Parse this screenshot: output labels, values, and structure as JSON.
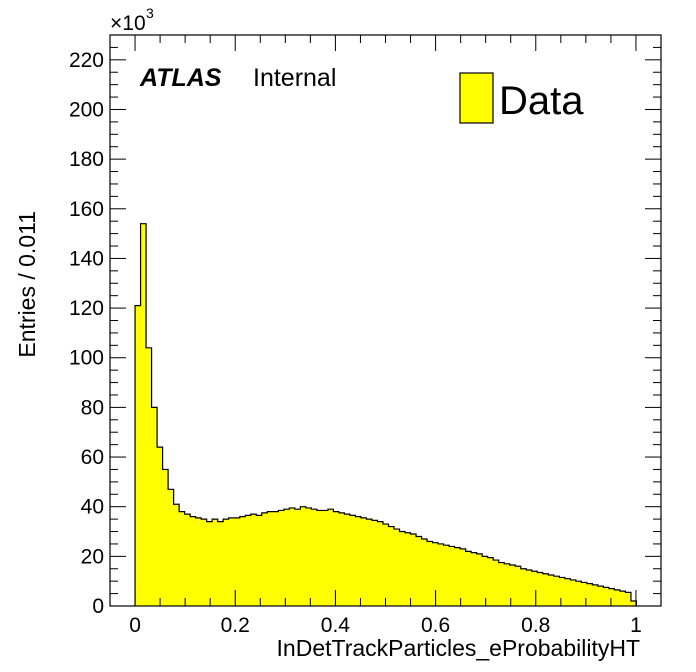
{
  "chart_data": {
    "type": "bar",
    "style": "histogram",
    "xlabel": "InDetTrackParticles_eProbabilityHT",
    "ylabel": "Entries / 0.011",
    "y_multiplier": "×10",
    "y_multiplier_exp": "3",
    "experiment_label": "ATLAS",
    "status_label": "Internal",
    "legend": {
      "entries": [
        "Data"
      ],
      "placement": "top-right"
    },
    "xlim": [
      -0.05,
      1.05
    ],
    "ylim": [
      0,
      230
    ],
    "x_ticks": [
      0,
      0.2,
      0.4,
      0.6,
      0.8,
      1
    ],
    "x_tick_labels": [
      "0",
      "0.2",
      "0.4",
      "0.6",
      "0.8",
      "1"
    ],
    "y_ticks": [
      0,
      20,
      40,
      60,
      80,
      100,
      120,
      140,
      160,
      180,
      200,
      220
    ],
    "y_tick_labels": [
      "0",
      "20",
      "40",
      "60",
      "80",
      "100",
      "120",
      "140",
      "160",
      "180",
      "200",
      "220"
    ],
    "bin_start": 0,
    "bin_width": 0.011,
    "fill_color": "#ffff00",
    "line_color": "#000000",
    "series": [
      {
        "name": "Data",
        "values": [
          121,
          154,
          104,
          80,
          64,
          55,
          47,
          41,
          38,
          37,
          36,
          35.5,
          35,
          34,
          35,
          34,
          35,
          35.5,
          35.5,
          36,
          36.5,
          37,
          36.5,
          37.5,
          38,
          38,
          38.5,
          39,
          39.5,
          39,
          40,
          39.5,
          39,
          38.5,
          38.5,
          39,
          38,
          37.5,
          37,
          36.5,
          36,
          35.5,
          35,
          34.5,
          34,
          33,
          32,
          31,
          30,
          29.5,
          29,
          28,
          27,
          26,
          25.5,
          25,
          24.5,
          24,
          23.5,
          23,
          22,
          21.5,
          21,
          20,
          19.5,
          18.5,
          17.5,
          17,
          16.5,
          16,
          15,
          14.5,
          14,
          13.5,
          13,
          12.5,
          12,
          11.5,
          11,
          10.5,
          10,
          9.5,
          9,
          8.5,
          8,
          7.5,
          7,
          6.5,
          6,
          5.5,
          2
        ]
      }
    ]
  }
}
